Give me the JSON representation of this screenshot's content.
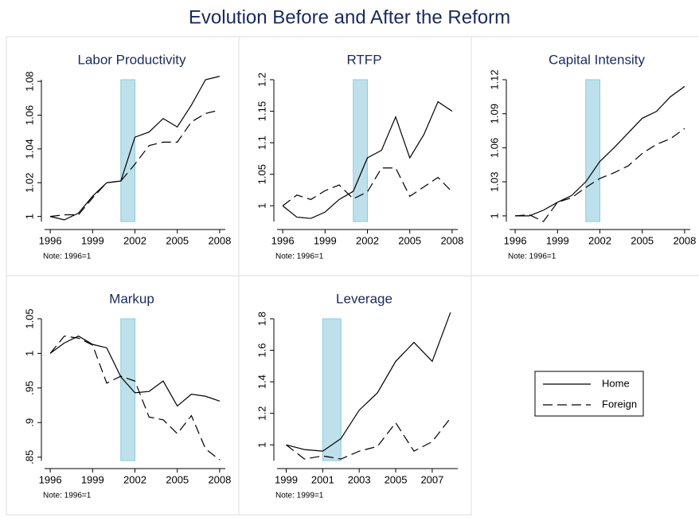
{
  "title": "Evolution Before and After the Reform",
  "chart_data": [
    {
      "type": "line",
      "title": "Labor Productivity",
      "note": "Note: 1996=1",
      "x": [
        1996,
        1997,
        1998,
        1999,
        2000,
        2001,
        2002,
        2003,
        2004,
        2005,
        2006,
        2007,
        2008
      ],
      "series": [
        {
          "name": "Home",
          "color": "#000000",
          "dash": "solid",
          "values": [
            1.0,
            0.998,
            1.002,
            1.012,
            1.02,
            1.021,
            1.047,
            1.05,
            1.058,
            1.053,
            1.066,
            1.081,
            1.083
          ]
        },
        {
          "name": "Foreign",
          "color": "#000000",
          "dash": "dashed",
          "values": [
            1.0,
            1.001,
            1.001,
            1.011,
            1.02,
            1.021,
            1.031,
            1.042,
            1.044,
            1.044,
            1.056,
            1.061,
            1.063
          ]
        }
      ],
      "xlim": [
        1995.6,
        2008.4
      ],
      "xticks": [
        1996,
        1999,
        2002,
        2005,
        2008
      ],
      "ylim": [
        0.997,
        1.081
      ],
      "yticks": [
        1,
        1.02,
        1.04,
        1.06,
        1.08
      ],
      "shade": {
        "x": [
          2001,
          2002
        ],
        "color": "#add8e6"
      }
    },
    {
      "type": "line",
      "title": "RTFP",
      "note": "Note: 1996=1",
      "x": [
        1996,
        1997,
        1998,
        1999,
        2000,
        2001,
        2002,
        2003,
        2004,
        2005,
        2006,
        2007,
        2008
      ],
      "series": [
        {
          "name": "Home",
          "color": "#000000",
          "dash": "solid",
          "values": [
            1.0,
            0.982,
            0.98,
            0.99,
            1.01,
            1.023,
            1.076,
            1.088,
            1.141,
            1.076,
            1.113,
            1.165,
            1.15
          ]
        },
        {
          "name": "Foreign",
          "color": "#000000",
          "dash": "dashed",
          "values": [
            1.0,
            1.017,
            1.01,
            1.024,
            1.033,
            1.011,
            1.022,
            1.06,
            1.06,
            1.015,
            1.03,
            1.045,
            1.022
          ]
        }
      ],
      "xlim": [
        1995.6,
        2008.4
      ],
      "xticks": [
        1996,
        1999,
        2002,
        2005,
        2008
      ],
      "ylim": [
        0.975,
        1.2
      ],
      "yticks": [
        1,
        1.05,
        1.1,
        1.15,
        1.2
      ],
      "shade": {
        "x": [
          2001,
          2002
        ],
        "color": "#add8e6"
      }
    },
    {
      "type": "line",
      "title": "Capital Intensity",
      "note": "Note: 1996=1",
      "x": [
        1996,
        1997,
        1998,
        1999,
        2000,
        2001,
        2002,
        2003,
        2004,
        2005,
        2006,
        2007,
        2008
      ],
      "series": [
        {
          "name": "Home",
          "color": "#000000",
          "dash": "solid",
          "values": [
            1.0,
            1.0,
            1.005,
            1.012,
            1.018,
            1.03,
            1.048,
            1.06,
            1.073,
            1.086,
            1.092,
            1.105,
            1.114
          ]
        },
        {
          "name": "Foreign",
          "color": "#000000",
          "dash": "dashed",
          "values": [
            1.0,
            1.001,
            0.995,
            1.012,
            1.016,
            1.025,
            1.033,
            1.038,
            1.044,
            1.055,
            1.063,
            1.068,
            1.077
          ]
        }
      ],
      "xlim": [
        1995.6,
        2008.4
      ],
      "xticks": [
        1996,
        1999,
        2002,
        2005,
        2008
      ],
      "ylim": [
        0.995,
        1.12
      ],
      "yticks": [
        1,
        1.03,
        1.06,
        1.09,
        1.12
      ],
      "shade": {
        "x": [
          2001,
          2002
        ],
        "color": "#add8e6"
      }
    },
    {
      "type": "line",
      "title": "Markup",
      "note": "Note: 1996=1",
      "x": [
        1996,
        1997,
        1998,
        1999,
        2000,
        2001,
        2002,
        2003,
        2004,
        2005,
        2006,
        2007,
        2008
      ],
      "series": [
        {
          "name": "Home",
          "color": "#000000",
          "dash": "solid",
          "values": [
            1.0,
            1.015,
            1.025,
            1.013,
            1.008,
            0.966,
            0.943,
            0.945,
            0.96,
            0.924,
            0.941,
            0.938,
            0.931
          ]
        },
        {
          "name": "Foreign",
          "color": "#000000",
          "dash": "dashed",
          "values": [
            1.0,
            1.025,
            1.022,
            1.012,
            0.957,
            0.967,
            0.96,
            0.908,
            0.904,
            0.884,
            0.91,
            0.862,
            0.846
          ]
        }
      ],
      "xlim": [
        1995.6,
        2008.4
      ],
      "xticks": [
        1996,
        1999,
        2002,
        2005,
        2008
      ],
      "ylim": [
        0.845,
        1.05
      ],
      "yticks": [
        {
          "value": 0.85,
          "label": ".85"
        },
        {
          "value": 0.9,
          "label": ".9"
        },
        {
          "value": 0.95,
          "label": ".95"
        },
        1,
        1.05
      ],
      "shade": {
        "x": [
          2001,
          2002
        ],
        "color": "#add8e6"
      }
    },
    {
      "type": "line",
      "title": "Leverage",
      "note": "Note: 1999=1",
      "x": [
        1999,
        2000,
        2001,
        2002,
        2003,
        2004,
        2005,
        2006,
        2007,
        2008
      ],
      "series": [
        {
          "name": "Home",
          "color": "#000000",
          "dash": "solid",
          "values": [
            1.0,
            0.97,
            0.96,
            1.04,
            1.22,
            1.33,
            1.53,
            1.65,
            1.53,
            1.84
          ]
        },
        {
          "name": "Foreign",
          "color": "#000000",
          "dash": "dashed",
          "values": [
            1.0,
            0.91,
            0.93,
            0.91,
            0.96,
            0.99,
            1.14,
            0.96,
            1.02,
            1.17
          ]
        }
      ],
      "xlim": [
        1998.5,
        2008.4
      ],
      "xticks": [
        1999,
        2001,
        2003,
        2005,
        2007
      ],
      "ylim": [
        0.9,
        1.8
      ],
      "yticks": [
        1,
        1.2,
        1.4,
        1.6,
        1.8
      ],
      "shade": {
        "x": [
          2001,
          2002
        ],
        "color": "#add8e6"
      }
    }
  ]
}
